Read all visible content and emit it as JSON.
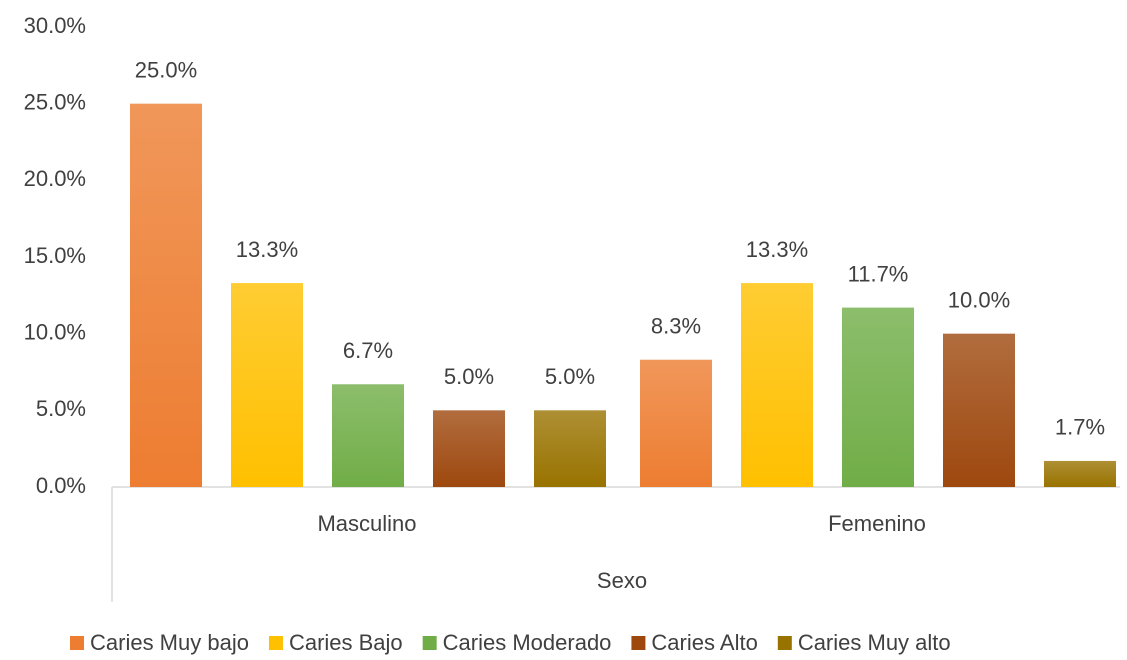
{
  "chart_data": {
    "type": "bar",
    "x_label": "Sexo",
    "categories": [
      "Masculino",
      "Femenino"
    ],
    "series": [
      {
        "name": "Caries Muy bajo",
        "color": "#ED7D31",
        "values": [
          25.0,
          8.3
        ],
        "value_labels": [
          "25.0%",
          "8.3%"
        ]
      },
      {
        "name": "Caries Bajo",
        "color": "#FFC000",
        "values": [
          13.3,
          13.3
        ],
        "value_labels": [
          "13.3%",
          "13.3%"
        ]
      },
      {
        "name": "Caries Moderado",
        "color": "#70AD47",
        "values": [
          6.7,
          11.7
        ],
        "value_labels": [
          "6.7%",
          "11.7%"
        ]
      },
      {
        "name": "Caries Alto",
        "color": "#9E480E",
        "values": [
          5.0,
          10.0
        ],
        "value_labels": [
          "5.0%",
          "10.0%"
        ]
      },
      {
        "name": "Caries Muy alto",
        "color": "#997300",
        "values": [
          5.0,
          1.7
        ],
        "value_labels": [
          "5.0%",
          "1.7%"
        ]
      }
    ],
    "ylim": [
      0,
      30
    ],
    "yticks": [
      {
        "value": 0,
        "label": "0.0%"
      },
      {
        "value": 5,
        "label": "5.0%"
      },
      {
        "value": 10,
        "label": "10.0%"
      },
      {
        "value": 15,
        "label": "15.0%"
      },
      {
        "value": 20,
        "label": "20.0%"
      },
      {
        "value": 25,
        "label": "25.0%"
      },
      {
        "value": 30,
        "label": "30.0%"
      }
    ],
    "grid": false,
    "legend": "bottom"
  }
}
